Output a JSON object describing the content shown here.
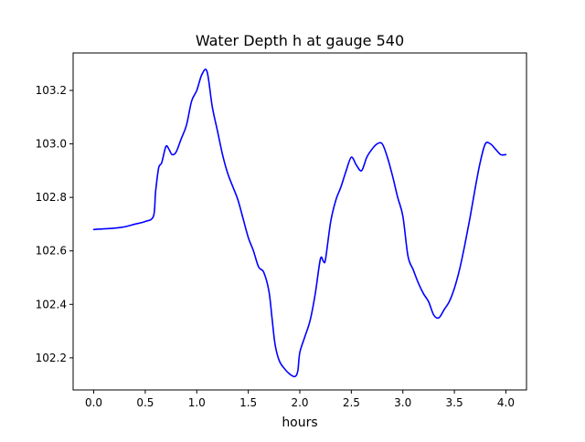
{
  "chart_data": {
    "type": "line",
    "title": "Water Depth h at gauge 540",
    "xlabel": "hours",
    "ylabel": "",
    "xlim": [
      -0.2,
      4.2
    ],
    "ylim": [
      102.08,
      103.34
    ],
    "xticks": [
      0.0,
      0.5,
      1.0,
      1.5,
      2.0,
      2.5,
      3.0,
      3.5,
      4.0
    ],
    "xtick_labels": [
      "0.0",
      "0.5",
      "1.0",
      "1.5",
      "2.0",
      "2.5",
      "3.0",
      "3.5",
      "4.0"
    ],
    "yticks": [
      102.2,
      102.4,
      102.6,
      102.8,
      103.0,
      103.2
    ],
    "ytick_labels": [
      "102.2",
      "102.4",
      "102.6",
      "102.8",
      "103.0",
      "103.2"
    ],
    "grid": false,
    "series": [
      {
        "color": "#0000ff",
        "x": [
          0.0,
          0.2,
          0.3,
          0.4,
          0.5,
          0.58,
          0.6,
          0.63,
          0.66,
          0.7,
          0.73,
          0.76,
          0.8,
          0.85,
          0.9,
          0.95,
          1.0,
          1.05,
          1.1,
          1.15,
          1.2,
          1.25,
          1.3,
          1.35,
          1.4,
          1.45,
          1.5,
          1.55,
          1.6,
          1.65,
          1.7,
          1.73,
          1.76,
          1.8,
          1.85,
          1.9,
          1.95,
          1.98,
          2.0,
          2.05,
          2.1,
          2.15,
          2.2,
          2.23,
          2.25,
          2.3,
          2.35,
          2.4,
          2.45,
          2.5,
          2.55,
          2.6,
          2.65,
          2.7,
          2.75,
          2.8,
          2.85,
          2.9,
          2.95,
          3.0,
          3.05,
          3.1,
          3.15,
          3.2,
          3.25,
          3.3,
          3.35,
          3.4,
          3.45,
          3.5,
          3.55,
          3.6,
          3.65,
          3.7,
          3.75,
          3.8,
          3.85,
          3.9,
          3.95,
          4.0
        ],
        "y": [
          102.68,
          102.685,
          102.69,
          102.7,
          102.71,
          102.73,
          102.82,
          102.91,
          102.93,
          102.99,
          102.98,
          102.96,
          102.97,
          103.02,
          103.07,
          103.16,
          103.2,
          103.26,
          103.27,
          103.14,
          103.05,
          102.96,
          102.89,
          102.84,
          102.79,
          102.72,
          102.65,
          102.6,
          102.54,
          102.52,
          102.45,
          102.35,
          102.25,
          102.19,
          102.16,
          102.14,
          102.13,
          102.15,
          102.22,
          102.28,
          102.34,
          102.44,
          102.57,
          102.56,
          102.57,
          102.71,
          102.79,
          102.84,
          102.9,
          102.95,
          102.92,
          102.9,
          102.95,
          102.98,
          103.0,
          103.0,
          102.95,
          102.88,
          102.8,
          102.73,
          102.58,
          102.53,
          102.48,
          102.44,
          102.41,
          102.36,
          102.35,
          102.38,
          102.41,
          102.46,
          102.53,
          102.62,
          102.72,
          102.83,
          102.93,
          103.0,
          103.0,
          102.98,
          102.96,
          102.96
        ]
      }
    ]
  }
}
